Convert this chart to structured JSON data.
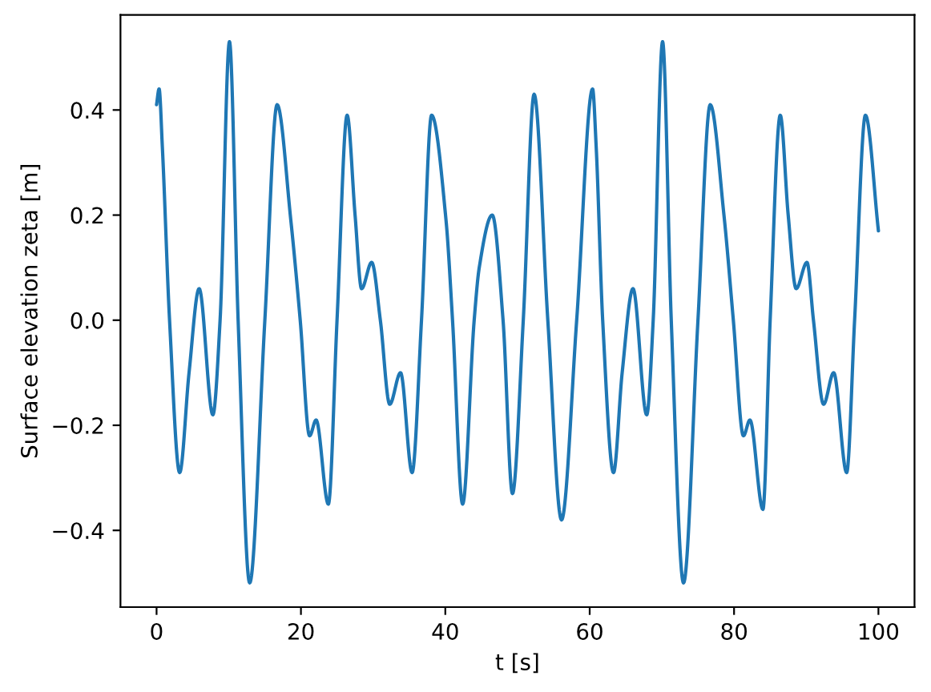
{
  "chart_data": {
    "type": "line",
    "xlabel": "t [s]",
    "ylabel": "Surface elevation zeta [m]",
    "x": [
      0,
      0.35,
      0.8,
      1.8,
      3.2,
      4.5,
      5.9,
      7.8,
      8.8,
      10.1,
      11.3,
      12.9,
      15.0,
      16.7,
      18.6,
      19.9,
      21.2,
      22.1,
      23.8,
      25.0,
      26.4,
      27.5,
      28.4,
      29.8,
      31.0,
      32.3,
      33.8,
      35.4,
      36.7,
      38.1,
      40.1,
      41.0,
      42.4,
      44.0,
      44.7,
      46.5,
      48.0,
      49.3,
      50.8,
      52.3,
      54.2,
      56.1,
      58.2,
      60.4,
      60.9,
      61.8,
      63.3,
      64.5,
      66.0,
      67.9,
      68.8,
      70.1,
      71.3,
      73.0,
      75.0,
      76.7,
      78.6,
      79.9,
      81.3,
      82.2,
      84.0,
      85.0,
      86.4,
      87.5,
      88.6,
      90.1,
      91.0,
      92.4,
      93.8,
      95.6,
      96.7,
      98.2,
      100
    ],
    "values": [
      0.41,
      0.44,
      0.33,
      0.0,
      -0.29,
      -0.1,
      0.06,
      -0.18,
      0.0,
      0.53,
      0.0,
      -0.5,
      0.0,
      0.41,
      0.19,
      0.0,
      -0.22,
      -0.19,
      -0.35,
      0.0,
      0.39,
      0.2,
      0.06,
      0.11,
      0.0,
      -0.16,
      -0.1,
      -0.29,
      0.0,
      0.39,
      0.19,
      0.0,
      -0.35,
      0.0,
      0.1,
      0.2,
      0.0,
      -0.33,
      0.0,
      0.43,
      0.0,
      -0.38,
      0.0,
      0.44,
      0.33,
      0.0,
      -0.29,
      -0.1,
      0.06,
      -0.18,
      0.0,
      0.53,
      0.0,
      -0.5,
      0.0,
      0.41,
      0.2,
      0.0,
      -0.22,
      -0.19,
      -0.36,
      0.0,
      0.39,
      0.2,
      0.06,
      0.11,
      0.0,
      -0.16,
      -0.1,
      -0.29,
      0.0,
      0.39,
      0.17
    ],
    "color": "#1f77b4",
    "line_style": "solid",
    "xlim": [
      -5,
      105
    ],
    "ylim": [
      -0.546,
      0.581
    ],
    "xticks": [
      0,
      20,
      40,
      60,
      80,
      100
    ],
    "yticks": [
      {
        "value": -0.4,
        "label": "−0.4"
      },
      {
        "value": -0.2,
        "label": "−0.2"
      },
      {
        "value": 0,
        "label": "0.0"
      },
      0.2,
      0.4
    ]
  }
}
